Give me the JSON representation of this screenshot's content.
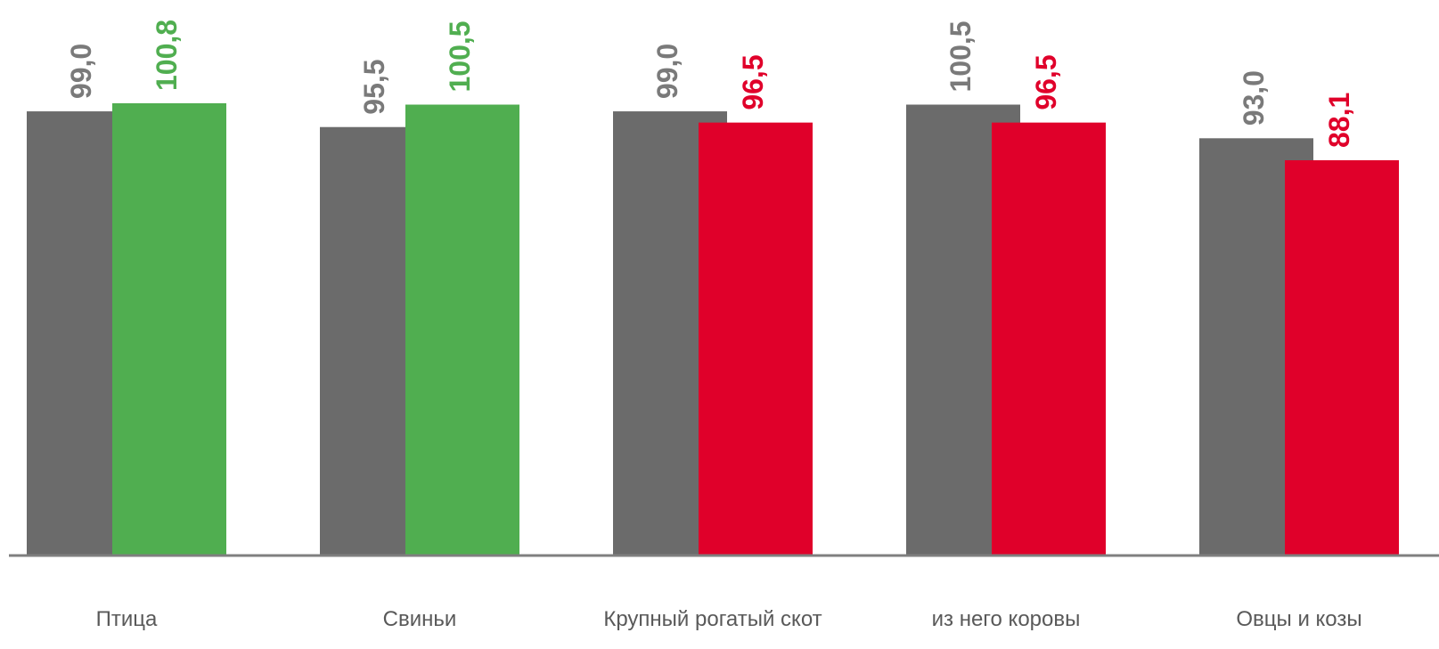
{
  "chart_data": {
    "type": "bar",
    "title": "",
    "xlabel": "",
    "ylabel": "",
    "categories": [
      "Птица",
      "Свиньи",
      "Крупный рогатый скот",
      "из него коровы",
      "Овцы и козы"
    ],
    "series": [
      {
        "values": [
          99.0,
          95.5,
          99.0,
          100.5,
          93.0
        ],
        "labels": [
          "99,0",
          "95,5",
          "99,0",
          "100,5",
          "93,0"
        ],
        "color": "#6b6b6b",
        "label_color": "#7a7a7a"
      },
      {
        "values": [
          100.8,
          100.5,
          96.5,
          96.5,
          88.1
        ],
        "labels": [
          "100,8",
          "100,5",
          "96,5",
          "96,5",
          "88,1"
        ],
        "colors": [
          "#50ae50",
          "#50ae50",
          "#e0002a",
          "#e0002a",
          "#e0002a"
        ]
      }
    ],
    "ylim": [
      0,
      100.8
    ],
    "grid": false,
    "legend": "none",
    "baseline_color": "#7f7f7f",
    "category_label_color": "#595959"
  }
}
